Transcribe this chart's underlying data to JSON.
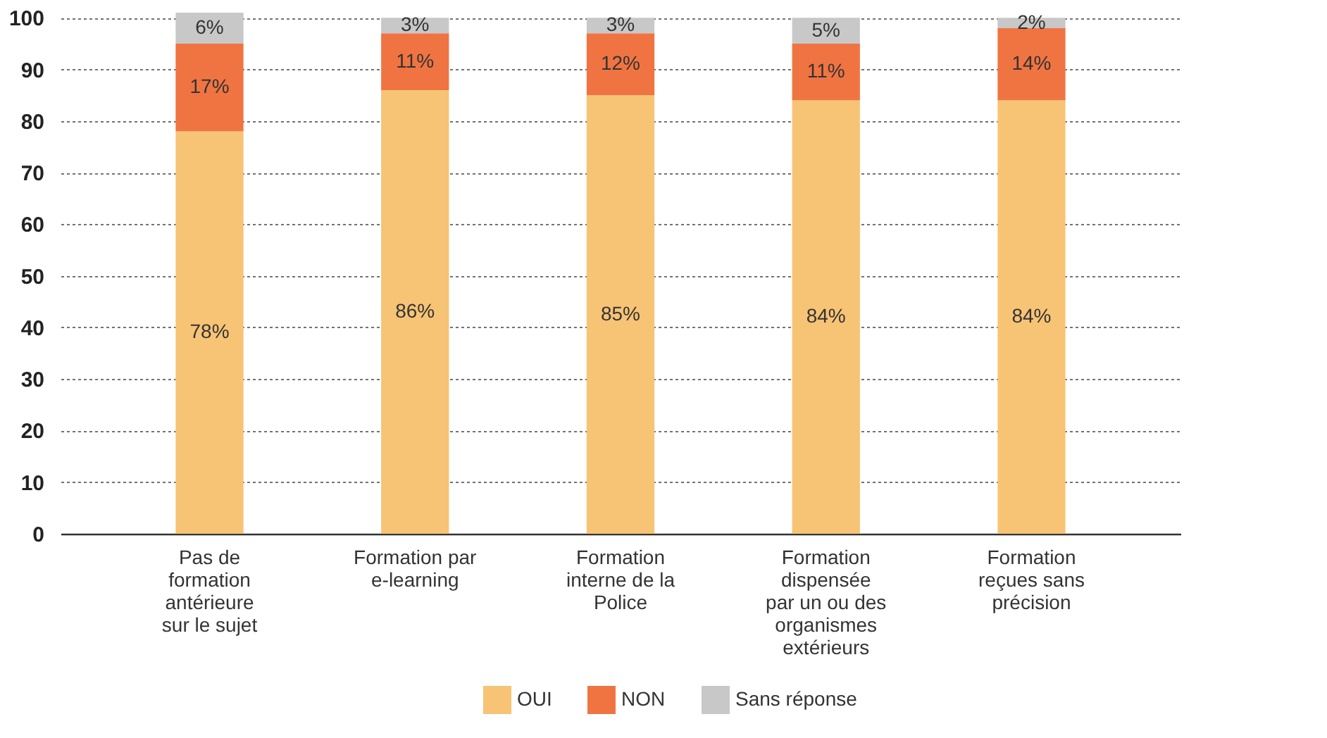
{
  "chart_data": {
    "type": "bar",
    "stacked": true,
    "categories": [
      "Pas de\nformation\nantérieure\nsur le sujet",
      "Formation par\ne-learning",
      "Formation\ninterne de la\nPolice",
      "Formation\ndispensée\npar un ou des\norganismes\nextérieurs",
      "Formation\nreçues sans\nprécision"
    ],
    "series": [
      {
        "name": "OUI",
        "color": "#f7c375",
        "values": [
          78,
          86,
          85,
          84,
          84
        ],
        "value_labels": [
          "78%",
          "86%",
          "85%",
          "84%",
          "84%"
        ]
      },
      {
        "name": "NON",
        "color": "#f07442",
        "values": [
          17,
          11,
          12,
          11,
          14
        ],
        "value_labels": [
          "17%",
          "11%",
          "12%",
          "11%",
          "14%"
        ]
      },
      {
        "name": "Sans réponse",
        "color": "#c8c8c8",
        "values": [
          6,
          3,
          3,
          5,
          2
        ],
        "value_labels": [
          "6%",
          "3%",
          "3%",
          "5%",
          "2%"
        ]
      }
    ],
    "ylim": [
      0,
      101
    ],
    "yticks": [
      0,
      10,
      20,
      30,
      40,
      50,
      60,
      70,
      80,
      90,
      100
    ],
    "grid": "y",
    "legend": "bottom"
  }
}
